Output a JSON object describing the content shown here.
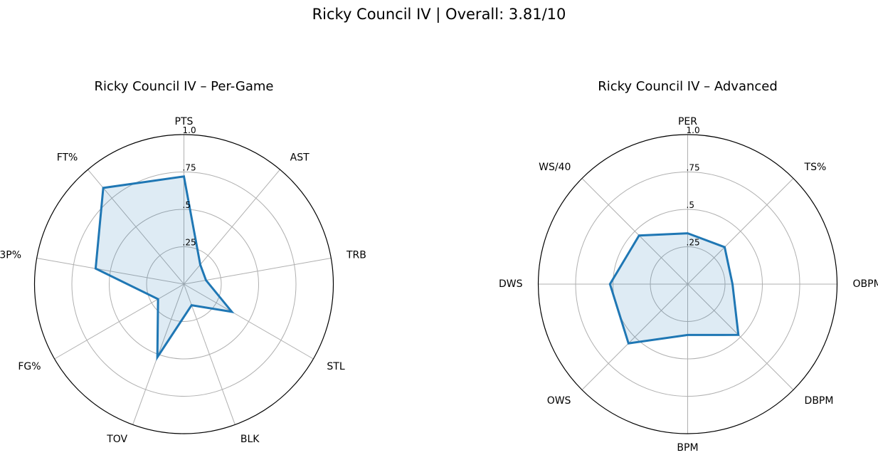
{
  "figure": {
    "title": "Ricky Council IV | Overall: 3.81/10"
  },
  "colors": {
    "series_line": "#1f77b4",
    "series_fill": "#1f77b4",
    "grid": "#b0b0b0",
    "frame": "#000000"
  },
  "chart_data": [
    {
      "type": "radar",
      "title": "Ricky Council IV – Per-Game",
      "categories": [
        "PTS",
        "AST",
        "TRB",
        "STL",
        "BLK",
        "TOV",
        "FG%",
        "3P%",
        "FT%"
      ],
      "values": [
        0.72,
        0.17,
        0.15,
        0.37,
        0.15,
        0.52,
        0.2,
        0.6,
        0.84
      ],
      "rlim": [
        0,
        1.0
      ],
      "rticks": [
        0.25,
        0.5,
        0.75,
        1.0
      ],
      "rtick_labels": [
        ".25",
        ".5",
        ".75",
        "1.0"
      ],
      "grid": true
    },
    {
      "type": "radar",
      "title": "Ricky Council IV – Advanced",
      "categories": [
        "PER",
        "TS%",
        "OBPM",
        "DBPM",
        "BPM",
        "OWS",
        "DWS",
        "WS/40"
      ],
      "values": [
        0.34,
        0.35,
        0.3,
        0.48,
        0.34,
        0.56,
        0.52,
        0.46
      ],
      "rlim": [
        0,
        1.0
      ],
      "rticks": [
        0.25,
        0.5,
        0.75,
        1.0
      ],
      "rtick_labels": [
        ".25",
        ".5",
        ".75",
        "1.0"
      ],
      "grid": true
    }
  ]
}
